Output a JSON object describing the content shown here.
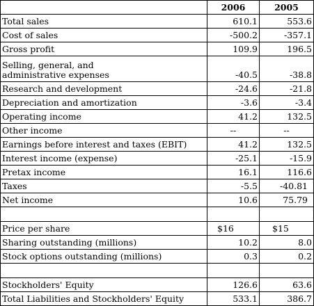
{
  "header": {
    "label": "",
    "year1": "2006",
    "year2": "2005"
  },
  "rows": [
    {
      "label": "Total sales",
      "v1": "610.1",
      "v2": "553.6"
    },
    {
      "label": "Cost of sales",
      "v1": "-500.2",
      "v2": "-357.1"
    },
    {
      "label": "Gross profit",
      "v1": "109.9",
      "v2": "196.5"
    },
    {
      "label_line1": "Selling, general, and",
      "label_line2": "administrative expenses",
      "v1": "-40.5",
      "v2": "-38.8"
    },
    {
      "label": "Research and development",
      "v1": "-24.6",
      "v2": "-21.8"
    },
    {
      "label": "Depreciation and amortization",
      "v1": "-3.6",
      "v2": "-3.4"
    },
    {
      "label": "Operating income",
      "v1": "41.2",
      "v2": "132.5"
    },
    {
      "label": "Other income",
      "v1": "--",
      "v2": "--"
    },
    {
      "label": "Earnings before interest and taxes (EBIT)",
      "v1": "41.2",
      "v2": "132.5"
    },
    {
      "label": "Interest income (expense)",
      "v1": "-25.1",
      "v2": "-15.9"
    },
    {
      "label": "Pretax income",
      "v1": "16.1",
      "v2": "116.6"
    },
    {
      "label": "Taxes",
      "v1": "-5.5",
      "v2": "-40.81"
    },
    {
      "label": "Net income",
      "v1": "10.6",
      "v2": "75.79"
    },
    {
      "label": "Price per share",
      "v1": "$16",
      "v2": "$15"
    },
    {
      "label": "Sharing outstanding (millions)",
      "v1": "10.2",
      "v2": "8.0"
    },
    {
      "label": "Stock options outstanding (millions)",
      "v1": "0.3",
      "v2": "0.2"
    },
    {
      "label": "Stockholders' Equity",
      "v1": "126.6",
      "v2": "63.6"
    },
    {
      "label": "Total Liabilities and Stockholders' Equity",
      "v1": "533.1",
      "v2": "386.7"
    }
  ]
}
